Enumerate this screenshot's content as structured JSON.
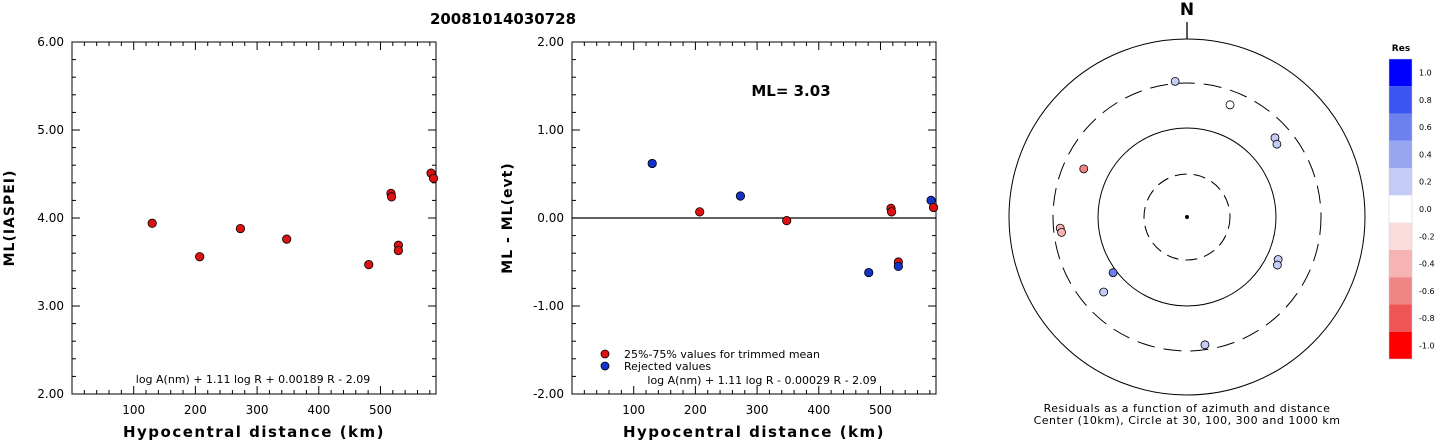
{
  "title": "20081014030728",
  "chart_data": [
    {
      "type": "scatter",
      "xlabel": "Hypocentral distance (km)",
      "ylabel": "ML(IASPEI)",
      "xlim": [
        0,
        590
      ],
      "ylim": [
        2.0,
        6.0
      ],
      "x_ticks": [
        "100",
        "200",
        "300",
        "400",
        "500"
      ],
      "y_ticks": [
        "2.00",
        "3.00",
        "4.00",
        "5.00",
        "6.00"
      ],
      "formula": "log A(nm) + 1.11 log R + 0.00189 R - 2.09",
      "points": [
        {
          "x": 130,
          "y": 3.94
        },
        {
          "x": 207,
          "y": 3.56
        },
        {
          "x": 273,
          "y": 3.88
        },
        {
          "x": 348,
          "y": 3.76
        },
        {
          "x": 481,
          "y": 3.47
        },
        {
          "x": 517,
          "y": 4.28
        },
        {
          "x": 518,
          "y": 4.24
        },
        {
          "x": 529,
          "y": 3.69
        },
        {
          "x": 529,
          "y": 3.63
        },
        {
          "x": 582,
          "y": 4.51
        },
        {
          "x": 586,
          "y": 4.45
        }
      ],
      "point_color": "#dd1111"
    },
    {
      "type": "scatter",
      "xlabel": "Hypocentral distance (km)",
      "ylabel": "ML - ML(evt)",
      "xlim": [
        0,
        590
      ],
      "ylim": [
        -2.0,
        2.0
      ],
      "x_ticks": [
        "100",
        "200",
        "300",
        "400",
        "500"
      ],
      "y_ticks": [
        "-2.00",
        "-1.00",
        "0.00",
        "1.00",
        "2.00"
      ],
      "annotation": "ML= 3.03",
      "formula": "log A(nm) + 1.11 log R - 0.00029 R - 2.09",
      "legend": [
        {
          "label": "25%-75% values for trimmed mean",
          "color": "#dd1111"
        },
        {
          "label": "Rejected values",
          "color": "#1133cc"
        }
      ],
      "points": [
        {
          "x": 130,
          "y": 0.62,
          "set": "rejected"
        },
        {
          "x": 207,
          "y": 0.07,
          "set": "trimmed"
        },
        {
          "x": 273,
          "y": 0.25,
          "set": "rejected"
        },
        {
          "x": 348,
          "y": -0.03,
          "set": "trimmed"
        },
        {
          "x": 481,
          "y": -0.62,
          "set": "rejected"
        },
        {
          "x": 517,
          "y": 0.11,
          "set": "trimmed"
        },
        {
          "x": 518,
          "y": 0.07,
          "set": "trimmed"
        },
        {
          "x": 529,
          "y": -0.5,
          "set": "trimmed"
        },
        {
          "x": 529,
          "y": -0.55,
          "set": "rejected"
        },
        {
          "x": 582,
          "y": 0.2,
          "set": "rejected"
        },
        {
          "x": 586,
          "y": 0.12,
          "set": "trimmed"
        }
      ]
    },
    {
      "type": "scatter",
      "north_label": "N",
      "caption_line1": "Residuals as a function of azimuth and distance",
      "caption_line2": "Center (10km), Circle at 30, 100, 300 and 1000 km",
      "stations": [
        {
          "azimuth": 355,
          "radius_frac": 0.765,
          "res": 0.25
        },
        {
          "azimuth": 21,
          "radius_frac": 0.675,
          "res": 0.05
        },
        {
          "azimuth": 48,
          "radius_frac": 0.665,
          "res": 0.15
        },
        {
          "azimuth": 51,
          "radius_frac": 0.65,
          "res": 0.12
        },
        {
          "azimuth": 295,
          "radius_frac": 0.64,
          "res": -0.6
        },
        {
          "azimuth": 265,
          "radius_frac": 0.715,
          "res": -0.5
        },
        {
          "azimuth": 263,
          "radius_frac": 0.71,
          "res": -0.5
        },
        {
          "azimuth": 233,
          "radius_frac": 0.52,
          "res": 0.62
        },
        {
          "azimuth": 228,
          "radius_frac": 0.63,
          "res": 0.25
        },
        {
          "azimuth": 115,
          "radius_frac": 0.565,
          "res": 0.1
        },
        {
          "azimuth": 118,
          "radius_frac": 0.575,
          "res": 0.15
        },
        {
          "azimuth": 172,
          "radius_frac": 0.725,
          "res": 0.12
        }
      ]
    },
    {
      "type": "heatmap",
      "title": "Res",
      "levels": [
        "1.0",
        "0.8",
        "0.6",
        "0.4",
        "0.2",
        "0.0",
        "-0.2",
        "-0.4",
        "-0.6",
        "-0.8",
        "-1.0"
      ],
      "colors": [
        "#0000ff",
        "#3a55f2",
        "#6c80ee",
        "#98a6f2",
        "#c4ccf6",
        "#ffffff",
        "#fadcdc",
        "#f5b3b3",
        "#f08585",
        "#ee5555",
        "#ff0000"
      ]
    }
  ]
}
